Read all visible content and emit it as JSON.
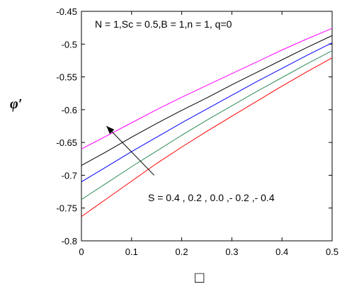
{
  "chart_data": {
    "type": "line",
    "title": "",
    "xlabel": "□",
    "ylabel": "φ′",
    "xlim": [
      0,
      0.5
    ],
    "ylim": [
      -0.8,
      -0.45
    ],
    "xticks": [
      0,
      0.1,
      0.2,
      0.3,
      0.4,
      0.5
    ],
    "xtick_labels": [
      "0",
      "0.1",
      "0.2",
      "0.3",
      "0.4",
      "0.5"
    ],
    "yticks": [
      -0.8,
      -0.75,
      -0.7,
      -0.65,
      -0.6,
      -0.55,
      -0.5,
      -0.45
    ],
    "ytick_labels": [
      "-0.8",
      "-0.75",
      "-0.7",
      "-0.65",
      "-0.6",
      "-0.55",
      "-0.5",
      "-0.45"
    ],
    "grid": false,
    "annotations": [
      {
        "id": "params",
        "text": "N = 1,Sc = 0.5,B = 1,n = 1, q=0"
      },
      {
        "id": "s-values",
        "text": "S = 0.4 , 0.2 , 0.0 ,- 0.2 ,- 0.4"
      }
    ],
    "arrow": {
      "from": [
        0.145,
        -0.7
      ],
      "to": [
        0.05,
        -0.625
      ]
    },
    "x": [
      0,
      0.05,
      0.1,
      0.15,
      0.2,
      0.25,
      0.3,
      0.35,
      0.4,
      0.45,
      0.5
    ],
    "series": [
      {
        "color": "#ff00ff",
        "values": [
          -0.66,
          -0.64,
          -0.62,
          -0.6,
          -0.581,
          -0.563,
          -0.545,
          -0.527,
          -0.509,
          -0.492,
          -0.476
        ]
      },
      {
        "color": "#000000",
        "values": [
          -0.685,
          -0.664,
          -0.642,
          -0.621,
          -0.601,
          -0.582,
          -0.562,
          -0.543,
          -0.524,
          -0.505,
          -0.487
        ]
      },
      {
        "color": "#0000ff",
        "values": [
          -0.71,
          -0.687,
          -0.664,
          -0.642,
          -0.62,
          -0.599,
          -0.578,
          -0.557,
          -0.537,
          -0.517,
          -0.498
        ]
      },
      {
        "color": "#2e8b57",
        "values": [
          -0.737,
          -0.712,
          -0.687,
          -0.663,
          -0.639,
          -0.616,
          -0.594,
          -0.572,
          -0.551,
          -0.53,
          -0.51
        ]
      },
      {
        "color": "#ff0000",
        "values": [
          -0.763,
          -0.736,
          -0.709,
          -0.682,
          -0.657,
          -0.633,
          -0.61,
          -0.587,
          -0.564,
          -0.542,
          -0.521
        ]
      }
    ]
  }
}
